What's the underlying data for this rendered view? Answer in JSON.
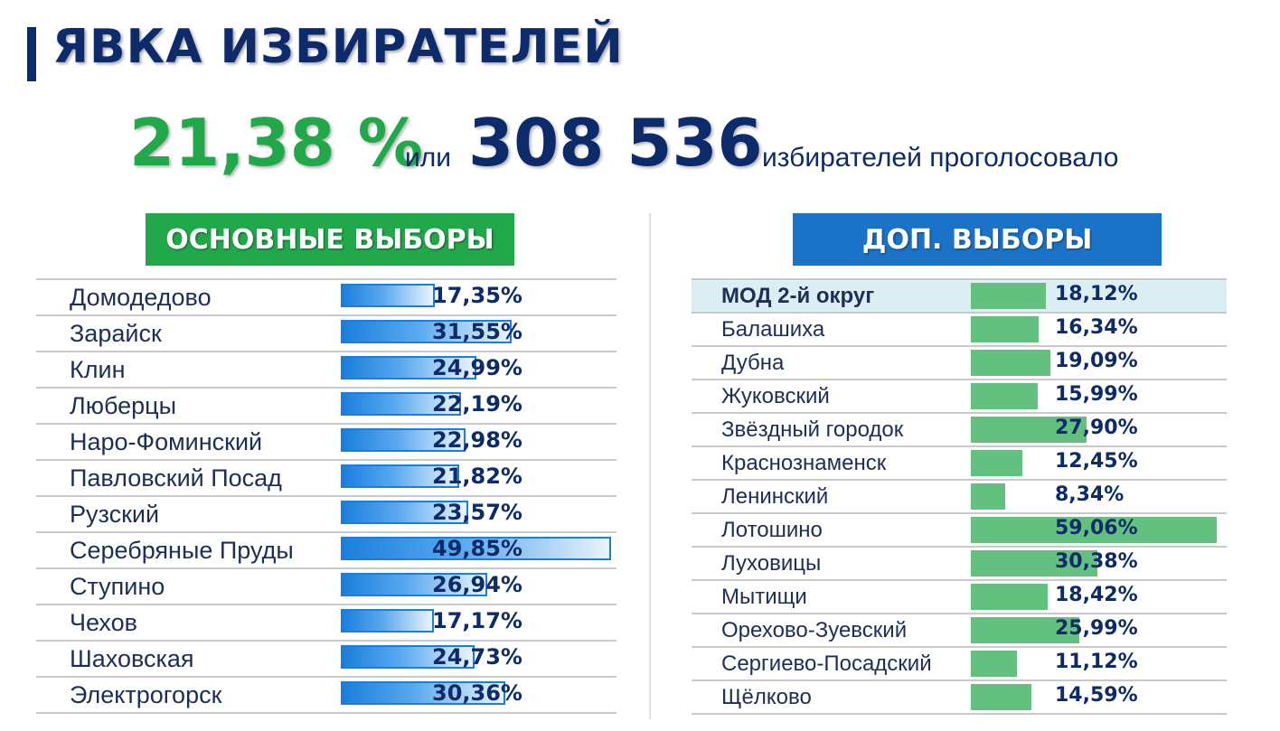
{
  "title": "ЯВКА ИЗБИРАТЕЛЕЙ",
  "summary": {
    "percent": "21,38 %",
    "connector": "или",
    "count": "308 536",
    "suffix": "избирателей проголосовало"
  },
  "colors": {
    "title": "#0d2b6b",
    "percent": "#21a84a",
    "main_header": "#21a84a",
    "extra_header": "#1a73c7",
    "main_bar": "#1a7fdc",
    "extra_bar": "#63c17f",
    "highlight_row": "#dbeef4"
  },
  "chart_data": [
    {
      "type": "bar",
      "title": "ОСНОВНЫЕ ВЫБОРЫ",
      "orientation": "horizontal",
      "categories": [
        "Домодедово",
        "Зарайск",
        "Клин",
        "Люберцы",
        "Наро-Фоминский",
        "Павловский Посад",
        "Рузский",
        "Серебряные Пруды",
        "Ступино",
        "Чехов",
        "Шаховская",
        "Электрогорск"
      ],
      "values": [
        17.35,
        31.55,
        24.99,
        22.19,
        22.98,
        21.82,
        23.57,
        49.85,
        26.94,
        17.17,
        24.73,
        30.36
      ],
      "labels": [
        "17,35%",
        "31,55%",
        "24,99%",
        "22,19%",
        "22,98%",
        "21,82%",
        "23,57%",
        "49,85%",
        "26,94%",
        "17,17%",
        "24,73%",
        "30,36%"
      ],
      "xlim": [
        0,
        50
      ]
    },
    {
      "type": "bar",
      "title": "ДОП. ВЫБОРЫ",
      "orientation": "horizontal",
      "categories": [
        "МОД 2-й округ",
        "Балашиха",
        "Дубна",
        "Жуковский",
        "Звёздный городок",
        "Краснознаменск",
        "Ленинский",
        "Лотошино",
        "Луховицы",
        "Мытищи",
        "Орехово-Зуевский",
        "Сергиево-Посадский",
        "Щёлково"
      ],
      "values": [
        18.12,
        16.34,
        19.09,
        15.99,
        27.9,
        12.45,
        8.34,
        59.06,
        30.38,
        18.42,
        25.99,
        11.12,
        14.59
      ],
      "labels": [
        "18,12%",
        "16,34%",
        "19,09%",
        "15,99%",
        "27,90%",
        "12,45%",
        "8,34%",
        "59,06%",
        "30,38%",
        "18,42%",
        "25,99%",
        "11,12%",
        "14,59%"
      ],
      "highlighted": "МОД 2-й округ",
      "xlim": [
        0,
        60
      ]
    }
  ]
}
